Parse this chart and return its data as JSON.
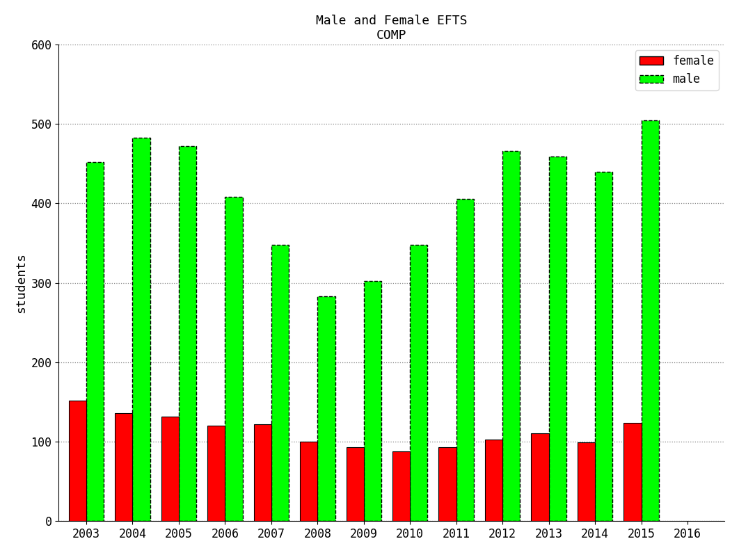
{
  "title_line1": "Male and Female EFTS",
  "title_line2": "COMP",
  "ylabel": "students",
  "years": [
    2003,
    2004,
    2005,
    2006,
    2007,
    2008,
    2009,
    2010,
    2011,
    2012,
    2013,
    2014,
    2015
  ],
  "female_values": [
    152,
    136,
    132,
    120,
    122,
    100,
    93,
    88,
    93,
    103,
    111,
    99,
    124
  ],
  "male_values": [
    452,
    483,
    472,
    408,
    348,
    283,
    302,
    348,
    406,
    466,
    459,
    440,
    505
  ],
  "female_color": "#ff0000",
  "male_color": "#00ff00",
  "male_hatch": "--",
  "bar_width": 0.38,
  "ylim": [
    0,
    600
  ],
  "yticks": [
    0,
    100,
    200,
    300,
    400,
    500,
    600
  ],
  "xlim_min": 2002.4,
  "xlim_max": 2016.8,
  "xticks": [
    2003,
    2004,
    2005,
    2006,
    2007,
    2008,
    2009,
    2010,
    2011,
    2012,
    2013,
    2014,
    2015,
    2016
  ],
  "grid_color": "#888888",
  "grid_style": "dotted",
  "background_color": "#ffffff",
  "legend_female": "female",
  "legend_male": "male",
  "title_fontsize": 13,
  "axis_label_fontsize": 13,
  "tick_fontsize": 12,
  "legend_fontsize": 12
}
